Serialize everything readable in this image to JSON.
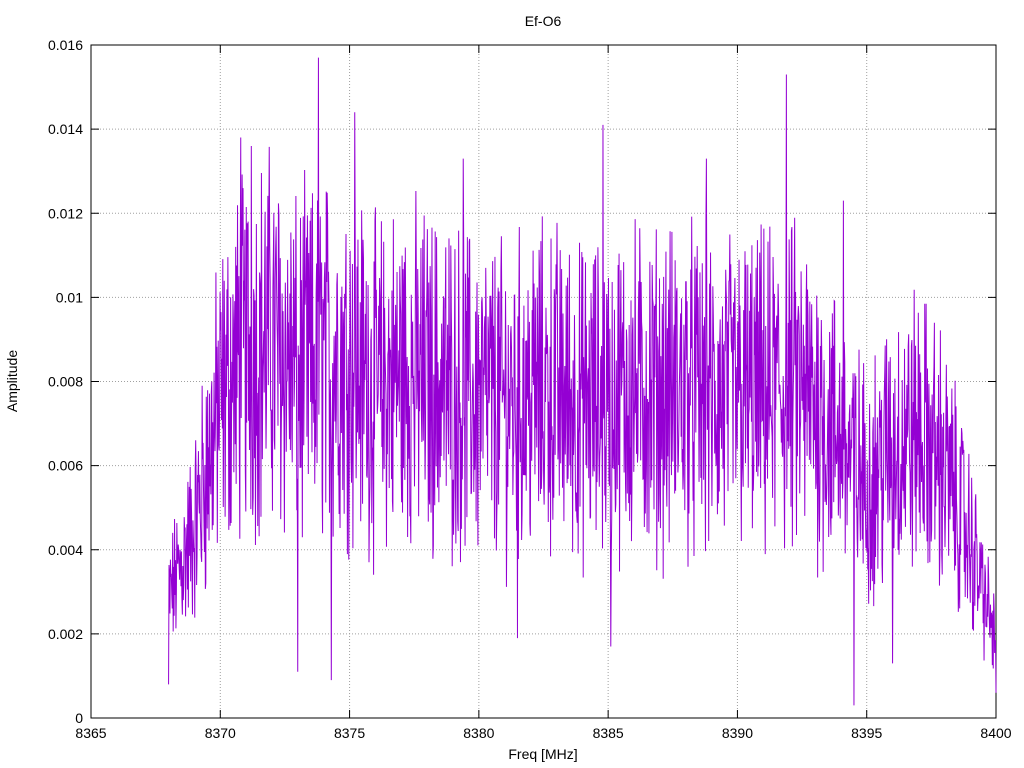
{
  "chart_data": {
    "type": "line",
    "title": "Ef-O6",
    "xlabel": "Freq [MHz]",
    "ylabel": "Amplitude",
    "xlim": [
      8365,
      8400
    ],
    "ylim": [
      0,
      0.016
    ],
    "x_ticks": [
      "8365",
      "8370",
      "8375",
      "8380",
      "8385",
      "8390",
      "8395",
      "8400"
    ],
    "y_ticks": [
      "0",
      "0.002",
      "0.004",
      "0.006",
      "0.008",
      "0.01",
      "0.012",
      "0.014",
      "0.016"
    ],
    "grid": true,
    "series": [
      {
        "color": "#9400d3",
        "x_start": 8368.0,
        "x_end": 8400.0,
        "envelope_x": [
          8368.0,
          8369.0,
          8370.0,
          8371.0,
          8372.0,
          8373.0,
          8374.0,
          8375.0,
          8376.0,
          8377.0,
          8378.0,
          8379.0,
          8380.0,
          8381.0,
          8382.0,
          8383.0,
          8384.0,
          8385.0,
          8386.0,
          8387.0,
          8388.0,
          8389.0,
          8390.0,
          8391.0,
          8392.0,
          8393.0,
          8394.0,
          8395.0,
          8396.0,
          8397.0,
          8398.0,
          8399.0,
          8400.0
        ],
        "envelope_mean": [
          0.0028,
          0.0045,
          0.0075,
          0.0088,
          0.009,
          0.0082,
          0.0085,
          0.0086,
          0.0078,
          0.0082,
          0.008,
          0.0078,
          0.0076,
          0.0075,
          0.0077,
          0.0078,
          0.0074,
          0.0076,
          0.0078,
          0.0077,
          0.0078,
          0.0075,
          0.0077,
          0.0076,
          0.0078,
          0.0075,
          0.0066,
          0.0055,
          0.0065,
          0.0068,
          0.006,
          0.0042,
          0.0018
        ],
        "peaks": [
          {
            "x": 8370.8,
            "y": 0.0138
          },
          {
            "x": 8371.2,
            "y": 0.0136
          },
          {
            "x": 8373.8,
            "y": 0.0157
          },
          {
            "x": 8375.2,
            "y": 0.0144
          },
          {
            "x": 8379.4,
            "y": 0.0133
          },
          {
            "x": 8384.8,
            "y": 0.0141
          },
          {
            "x": 8388.8,
            "y": 0.0133
          },
          {
            "x": 8391.9,
            "y": 0.0153
          },
          {
            "x": 8394.1,
            "y": 0.0123
          }
        ],
        "troughs": [
          {
            "x": 8368.0,
            "y": 0.0008
          },
          {
            "x": 8373.0,
            "y": 0.0011
          },
          {
            "x": 8374.3,
            "y": 0.0009
          },
          {
            "x": 8381.5,
            "y": 0.0019
          },
          {
            "x": 8385.1,
            "y": 0.0017
          },
          {
            "x": 8394.5,
            "y": 0.0003
          },
          {
            "x": 8396.0,
            "y": 0.0013
          },
          {
            "x": 8400.0,
            "y": 0.0006
          }
        ]
      }
    ]
  }
}
